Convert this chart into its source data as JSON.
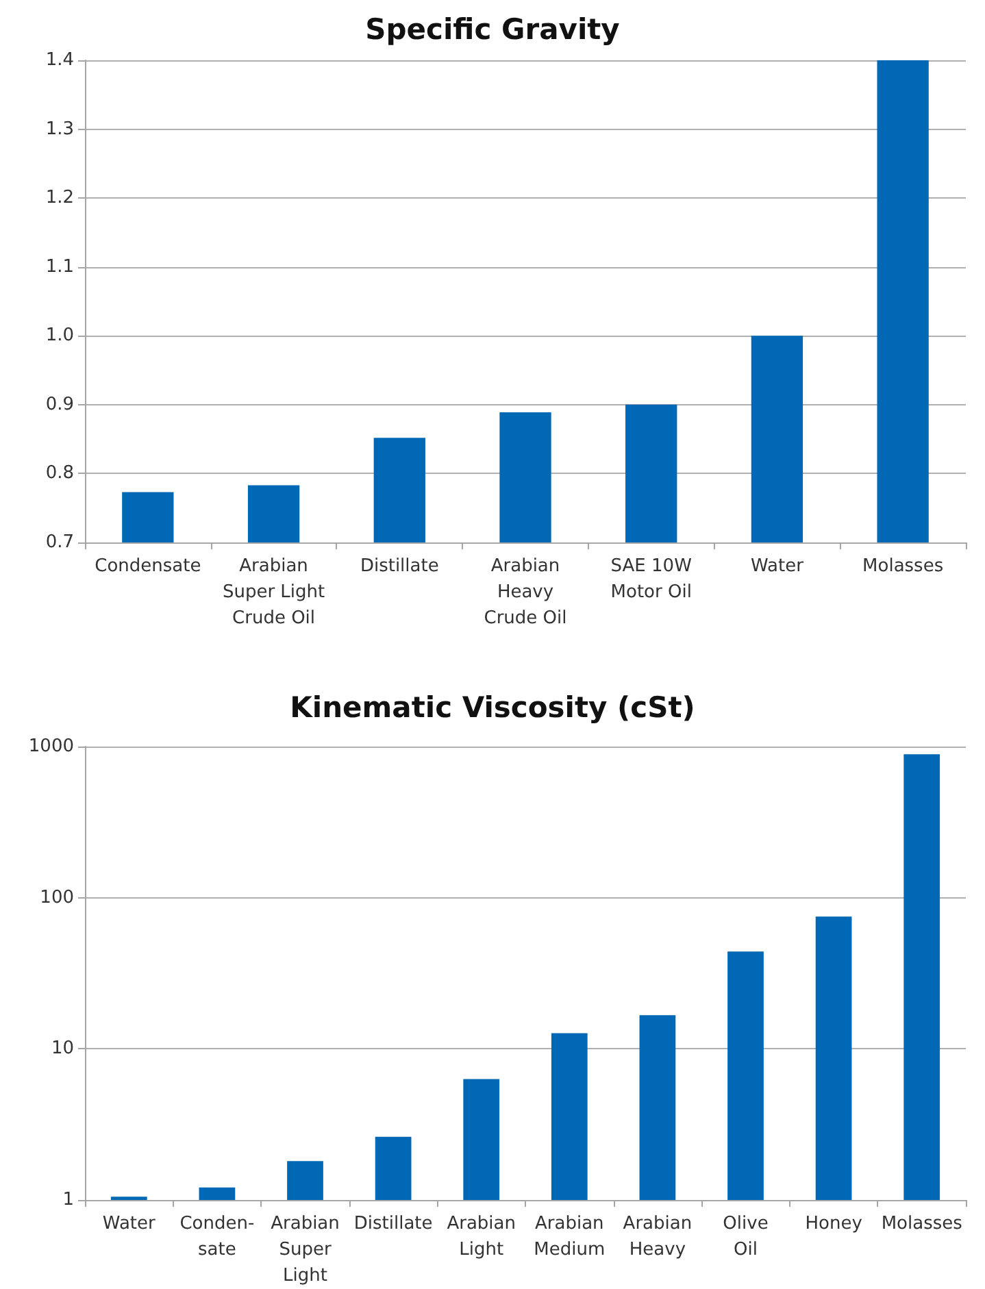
{
  "chart_data": [
    {
      "type": "bar",
      "title": "Specific Gravity",
      "categories": [
        "Condensate",
        "Arabian\nSuper Light\nCrude Oil",
        "Distillate",
        "Arabian\nHeavy\nCrude Oil",
        "SAE 10W\nMotor Oil",
        "Water",
        "Molasses"
      ],
      "values": [
        0.773,
        0.783,
        0.852,
        0.889,
        0.9,
        1.0,
        1.4
      ],
      "color": "#0068b5",
      "ylim": [
        0.7,
        1.4
      ],
      "yticks": [
        {
          "value": 0.7,
          "label": "0.7"
        },
        {
          "value": 0.8,
          "label": "0.8"
        },
        {
          "value": 0.9,
          "label": "0.9"
        },
        {
          "value": 1.0,
          "label": "1.0"
        },
        {
          "value": 1.1,
          "label": "1.1"
        },
        {
          "value": 1.2,
          "label": "1.2"
        },
        {
          "value": 1.3,
          "label": "1.3"
        },
        {
          "value": 1.4,
          "label": "1.4"
        }
      ],
      "grid": "y"
    },
    {
      "type": "bar",
      "title": "Kinematic Viscosity (cSt)",
      "categories": [
        "Water",
        "Conden-\nsate",
        "Arabian\nSuper\nLight",
        "Distillate",
        "Arabian\nLight",
        "Arabian\nMedium",
        "Arabian\nHeavy",
        "Olive\nOil",
        "Honey",
        "Molasses"
      ],
      "values": [
        1.05,
        1.21,
        1.81,
        2.62,
        6.3,
        12.7,
        16.7,
        44,
        75,
        890
      ],
      "color": "#0068b5",
      "log": "y",
      "ylim": [
        1,
        1000
      ],
      "yticks": [
        1,
        10,
        100,
        1000
      ],
      "grid": "y"
    }
  ]
}
